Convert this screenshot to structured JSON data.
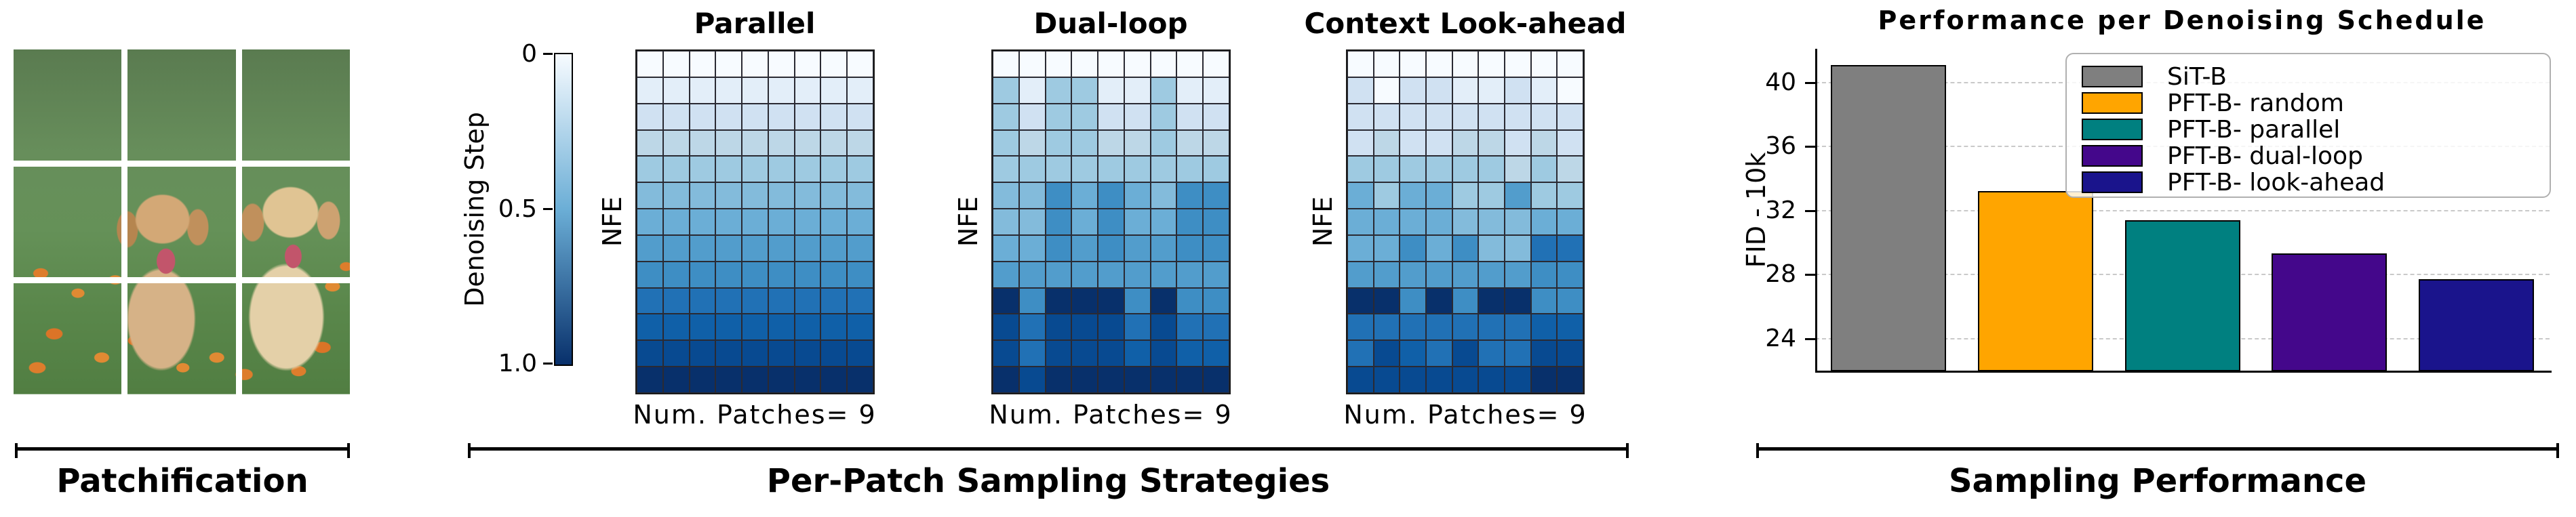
{
  "patchification": {
    "label": "Patchification"
  },
  "strategies": {
    "bracket_label": "Per-Patch Sampling Strategies",
    "colorbar": {
      "label": "Denoising Step",
      "ticks": [
        "0",
        "0.5",
        "1.0"
      ]
    },
    "ylabel": "NFE",
    "xlabel": "Num. Patches= 9",
    "palette": [
      "#f7fbff",
      "#e3eef9",
      "#d0e1f2",
      "#bdd7e7",
      "#9ecae1",
      "#83bbdb",
      "#6baed6",
      "#529dcc",
      "#3e8ec4",
      "#2171b5",
      "#1060a8",
      "#084a91",
      "#08306b"
    ],
    "heatmaps": [
      {
        "title": "Parallel",
        "matrix": [
          [
            0,
            0,
            0,
            0,
            0,
            0,
            0,
            0,
            0
          ],
          [
            1,
            1,
            1,
            1,
            1,
            1,
            1,
            1,
            1
          ],
          [
            2,
            2,
            2,
            2,
            2,
            2,
            2,
            2,
            2
          ],
          [
            3,
            3,
            3,
            3,
            3,
            3,
            3,
            3,
            3
          ],
          [
            4,
            4,
            4,
            4,
            4,
            4,
            4,
            4,
            4
          ],
          [
            5,
            5,
            5,
            5,
            5,
            5,
            5,
            5,
            5
          ],
          [
            6,
            6,
            6,
            6,
            6,
            6,
            6,
            6,
            6
          ],
          [
            7,
            7,
            7,
            7,
            7,
            7,
            7,
            7,
            7
          ],
          [
            8,
            8,
            8,
            8,
            8,
            8,
            8,
            8,
            8
          ],
          [
            9,
            9,
            9,
            9,
            9,
            9,
            9,
            9,
            9
          ],
          [
            10,
            10,
            10,
            10,
            10,
            10,
            10,
            10,
            10
          ],
          [
            11,
            11,
            11,
            11,
            11,
            11,
            11,
            11,
            11
          ],
          [
            12,
            12,
            12,
            12,
            12,
            12,
            12,
            12,
            12
          ]
        ]
      },
      {
        "title": "Dual-loop",
        "matrix": [
          [
            0,
            0,
            0,
            0,
            0,
            0,
            0,
            0,
            0
          ],
          [
            4,
            1,
            4,
            4,
            1,
            1,
            4,
            1,
            1
          ],
          [
            4,
            2,
            4,
            4,
            2,
            2,
            4,
            2,
            2
          ],
          [
            4,
            3,
            4,
            4,
            3,
            3,
            4,
            3,
            3
          ],
          [
            4,
            4,
            4,
            4,
            4,
            4,
            4,
            4,
            4
          ],
          [
            5,
            5,
            8,
            6,
            8,
            6,
            5,
            8,
            8
          ],
          [
            5,
            5,
            8,
            6,
            8,
            6,
            6,
            8,
            8
          ],
          [
            6,
            6,
            8,
            7,
            8,
            7,
            7,
            8,
            8
          ],
          [
            7,
            7,
            7,
            7,
            7,
            7,
            7,
            7,
            7
          ],
          [
            12,
            8,
            12,
            12,
            12,
            8,
            12,
            8,
            8
          ],
          [
            11,
            9,
            11,
            11,
            11,
            9,
            11,
            9,
            9
          ],
          [
            11,
            9,
            11,
            11,
            11,
            10,
            11,
            10,
            10
          ],
          [
            12,
            11,
            12,
            12,
            12,
            12,
            12,
            12,
            12
          ]
        ]
      },
      {
        "title": "Context Look-ahead",
        "matrix": [
          [
            0,
            0,
            0,
            0,
            0,
            0,
            0,
            0,
            0
          ],
          [
            2,
            0,
            2,
            2,
            1,
            1,
            2,
            1,
            0
          ],
          [
            2,
            2,
            2,
            2,
            2,
            2,
            2,
            2,
            2
          ],
          [
            2,
            3,
            2,
            2,
            3,
            3,
            2,
            3,
            2
          ],
          [
            4,
            4,
            4,
            4,
            4,
            4,
            3,
            4,
            3
          ],
          [
            6,
            4,
            6,
            6,
            4,
            4,
            7,
            4,
            4
          ],
          [
            6,
            6,
            6,
            6,
            5,
            5,
            5,
            6,
            6
          ],
          [
            6,
            6,
            8,
            6,
            8,
            5,
            5,
            9,
            9
          ],
          [
            7,
            7,
            7,
            7,
            7,
            7,
            7,
            8,
            8
          ],
          [
            12,
            12,
            8,
            12,
            8,
            12,
            12,
            8,
            8
          ],
          [
            9,
            9,
            9,
            9,
            9,
            9,
            9,
            10,
            10
          ],
          [
            9,
            11,
            10,
            9,
            11,
            9,
            9,
            11,
            11
          ],
          [
            11,
            11,
            11,
            11,
            11,
            11,
            11,
            12,
            12
          ]
        ]
      }
    ]
  },
  "performance": {
    "bracket_label": "Sampling Performance"
  },
  "chart_data": {
    "type": "bar",
    "title": "Performance per Denoising Schedule",
    "ylabel": "FID - 10k",
    "categories": [
      "SiT-B",
      "PFT-B- random",
      "PFT-B- parallel",
      "PFT-B- dual-loop",
      "PFT-B- look-ahead"
    ],
    "values": [
      41.1,
      33.2,
      31.4,
      29.3,
      27.7
    ],
    "colors": [
      "#7f7f7f",
      "#ffa500",
      "#008080",
      "#44078b",
      "#1a148c"
    ],
    "yticks": [
      24,
      28,
      32,
      36,
      40
    ],
    "ylim": [
      22,
      42.1
    ],
    "grid": "horizontal-dashed",
    "legend_position": "upper-right"
  }
}
